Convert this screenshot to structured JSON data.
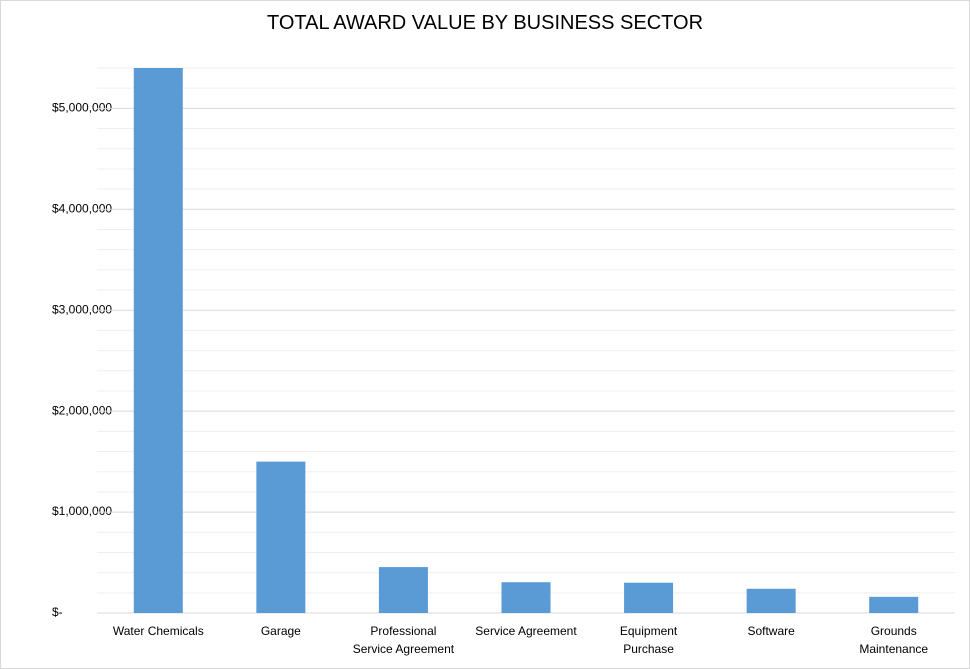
{
  "chart_data": {
    "type": "bar",
    "title": "TOTAL AWARD VALUE BY BUSINESS SECTOR",
    "categories": [
      "Water Chemicals",
      "Garage",
      "Professional Service Agreement",
      "Service Agreement",
      "Equipment Purchase",
      "Software",
      "Grounds Maintenance"
    ],
    "values": [
      5400000,
      1500000,
      455000,
      305000,
      300000,
      240000,
      160000
    ],
    "color": "#5b9bd5",
    "ylim": [
      0,
      5400000
    ],
    "yticks": [
      {
        "value": 0,
        "label": "$-"
      },
      {
        "value": 1000000,
        "label": "$1,000,000"
      },
      {
        "value": 2000000,
        "label": "$2,000,000"
      },
      {
        "value": 3000000,
        "label": "$3,000,000"
      },
      {
        "value": 4000000,
        "label": "$4,000,000"
      },
      {
        "value": 5000000,
        "label": "$5,000,000"
      }
    ],
    "minor_yticks": [
      200000,
      400000,
      600000,
      800000,
      1200000,
      1400000,
      1600000,
      1800000,
      2200000,
      2400000,
      2600000,
      2800000,
      3200000,
      3400000,
      3600000,
      3800000,
      4200000,
      4400000,
      4600000,
      4800000,
      5200000,
      5400000
    ],
    "grid": true
  }
}
